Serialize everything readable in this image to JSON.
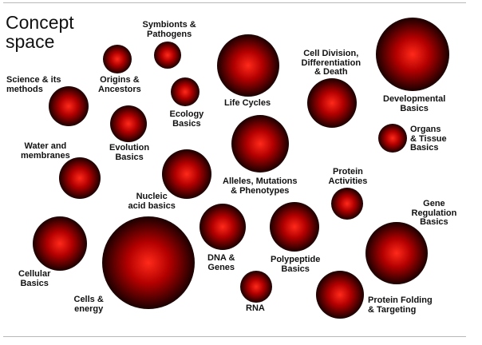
{
  "title": [
    "Concept",
    "space"
  ],
  "sphere_colors": {
    "highlight": "#ff2a1a",
    "mid": "#b30000",
    "shadow": "#1a0000"
  },
  "concepts": [
    {
      "name": "symbionts",
      "label": [
        "Symbionts &",
        "Pathogens"
      ]
    },
    {
      "name": "origins",
      "label": [
        "Origins &",
        "Ancestors"
      ]
    },
    {
      "name": "science",
      "label": [
        "Science & its",
        "methods"
      ]
    },
    {
      "name": "ecology",
      "label": [
        "Ecology",
        "Basics"
      ]
    },
    {
      "name": "life-cycles",
      "label": [
        "Life Cycles"
      ]
    },
    {
      "name": "cell-division",
      "label": [
        "Cell Division,",
        "Differentiation",
        "& Death"
      ]
    },
    {
      "name": "developmental",
      "label": [
        "Developmental",
        "Basics"
      ]
    },
    {
      "name": "organs",
      "label": [
        "Organs",
        "& Tissue",
        "Basics"
      ]
    },
    {
      "name": "evolution",
      "label": [
        "Evolution",
        "Basics"
      ]
    },
    {
      "name": "water",
      "label": [
        "Water and",
        "membranes"
      ]
    },
    {
      "name": "alleles",
      "label": [
        "Alleles, Mutations",
        "& Phenotypes"
      ]
    },
    {
      "name": "protein-activities",
      "label": [
        "Protein",
        "Activities"
      ]
    },
    {
      "name": "nucleic",
      "label": [
        "Nucleic",
        "acid basics"
      ]
    },
    {
      "name": "gene-regulation",
      "label": [
        "Gene",
        "Regulation",
        "Basics"
      ]
    },
    {
      "name": "cellular",
      "label": [
        "Cellular",
        "Basics"
      ]
    },
    {
      "name": "dna-genes",
      "label": [
        "DNA &",
        "Genes"
      ]
    },
    {
      "name": "polypeptide",
      "label": [
        "Polypeptide",
        "Basics"
      ]
    },
    {
      "name": "cells-energy",
      "label": [
        "Cells &",
        "energy"
      ]
    },
    {
      "name": "rna",
      "label": [
        "RNA"
      ]
    },
    {
      "name": "protein-folding",
      "label": [
        "Protein Folding",
        "& Targeting"
      ]
    }
  ]
}
